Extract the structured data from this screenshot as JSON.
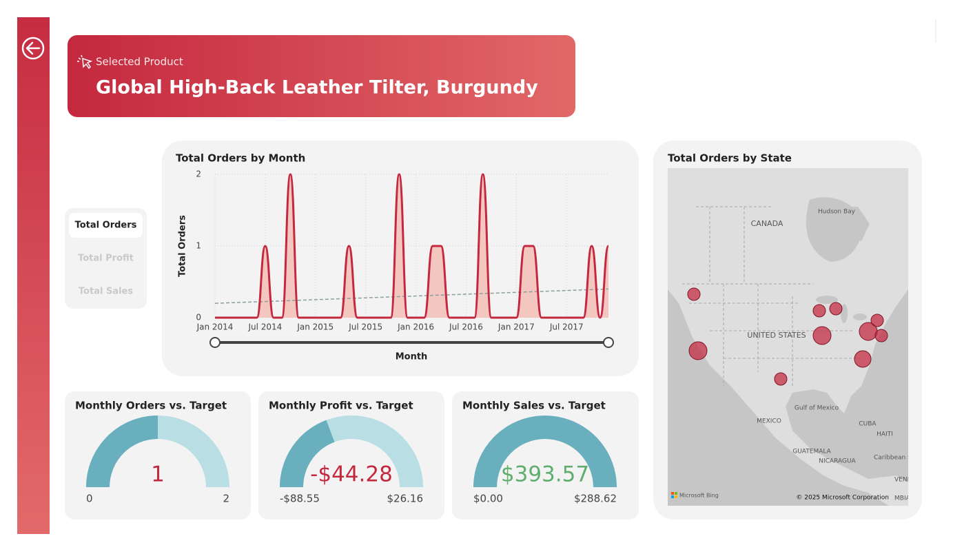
{
  "header": {
    "label": "Selected Product",
    "title": "Global High-Back Leather Tilter, Burgundy"
  },
  "toggle": {
    "items": [
      "Total Orders",
      "Total Profit",
      "Total Sales"
    ],
    "active": 0
  },
  "chart_data": {
    "type": "line",
    "title": "Total Orders by Month",
    "x_label": "Month",
    "y_label": "Total Orders",
    "x": [
      "2014-01",
      "2014-02",
      "2014-03",
      "2014-04",
      "2014-05",
      "2014-06",
      "2014-07",
      "2014-08",
      "2014-09",
      "2014-10",
      "2014-11",
      "2014-12",
      "2015-01",
      "2015-02",
      "2015-03",
      "2015-04",
      "2015-05",
      "2015-06",
      "2015-07",
      "2015-08",
      "2015-09",
      "2015-10",
      "2015-11",
      "2015-12",
      "2016-01",
      "2016-02",
      "2016-03",
      "2016-04",
      "2016-05",
      "2016-06",
      "2016-07",
      "2016-08",
      "2016-09",
      "2016-10",
      "2016-11",
      "2016-12",
      "2017-01",
      "2017-02",
      "2017-03",
      "2017-04",
      "2017-05",
      "2017-06",
      "2017-07",
      "2017-08",
      "2017-09",
      "2017-10",
      "2017-11",
      "2017-12"
    ],
    "values": [
      0,
      0,
      0,
      0,
      0,
      0,
      1,
      0,
      0,
      2,
      0,
      0,
      0,
      0,
      0,
      0,
      1,
      0,
      0,
      0,
      0,
      0,
      2,
      0,
      0,
      0,
      1,
      1,
      0,
      0,
      0,
      0,
      2,
      0,
      0,
      0,
      0,
      1,
      1,
      0,
      0,
      0,
      0,
      0,
      0,
      1,
      0,
      1
    ],
    "color": "#c4283e",
    "area_color": "#f4c6c0",
    "trend": [
      0.2,
      0.4
    ],
    "trend_color": "#8a9e9c",
    "ylim": [
      0,
      2
    ],
    "yticks": [
      0,
      1,
      2
    ],
    "xticks": [
      {
        "value": "2014-01",
        "label": "Jan 2014"
      },
      {
        "value": "2014-07",
        "label": "Jul 2014"
      },
      {
        "value": "2015-01",
        "label": "Jan 2015"
      },
      {
        "value": "2015-07",
        "label": "Jul 2015"
      },
      {
        "value": "2016-01",
        "label": "Jan 2016"
      },
      {
        "value": "2016-07",
        "label": "Jul 2016"
      },
      {
        "value": "2017-01",
        "label": "Jan 2017"
      },
      {
        "value": "2017-07",
        "label": "Jul 2017"
      }
    ],
    "grid": true
  },
  "gauges": [
    {
      "title": "Monthly Orders vs. Target",
      "value": 1,
      "value_label": "1",
      "min": 0,
      "min_label": "0",
      "max": 2,
      "max_label": "2",
      "value_color": "#c4283e"
    },
    {
      "title": "Monthly Profit vs. Target",
      "value": -44.28,
      "value_label": "-$44.28",
      "min": -88.55,
      "min_label": "-$88.55",
      "max": 26.16,
      "max_label": "$26.16",
      "value_color": "#c4283e"
    },
    {
      "title": "Monthly Sales vs. Target",
      "value": 393.57,
      "value_label": "$393.57",
      "min": 0,
      "min_label": "$0.00",
      "max": 288.62,
      "max_label": "$288.62",
      "value_color": "#5fae6e"
    }
  ],
  "gauge_colors": {
    "fill": "#6aafbd",
    "track": "#b9dfe5"
  },
  "map": {
    "title": "Total Orders by State",
    "labels": [
      "Hudson Bay",
      "CANADA",
      "UNITED STATES",
      "Gulf of Mexico",
      "MEXICO",
      "CUBA",
      "HAITI",
      "GUATEMALA",
      "NICARAGUA",
      "Caribbean Se",
      "VENE",
      "MBIA"
    ],
    "attribution": "Microsoft Bing",
    "copyright": "© 2025 Microsoft Corporation"
  }
}
